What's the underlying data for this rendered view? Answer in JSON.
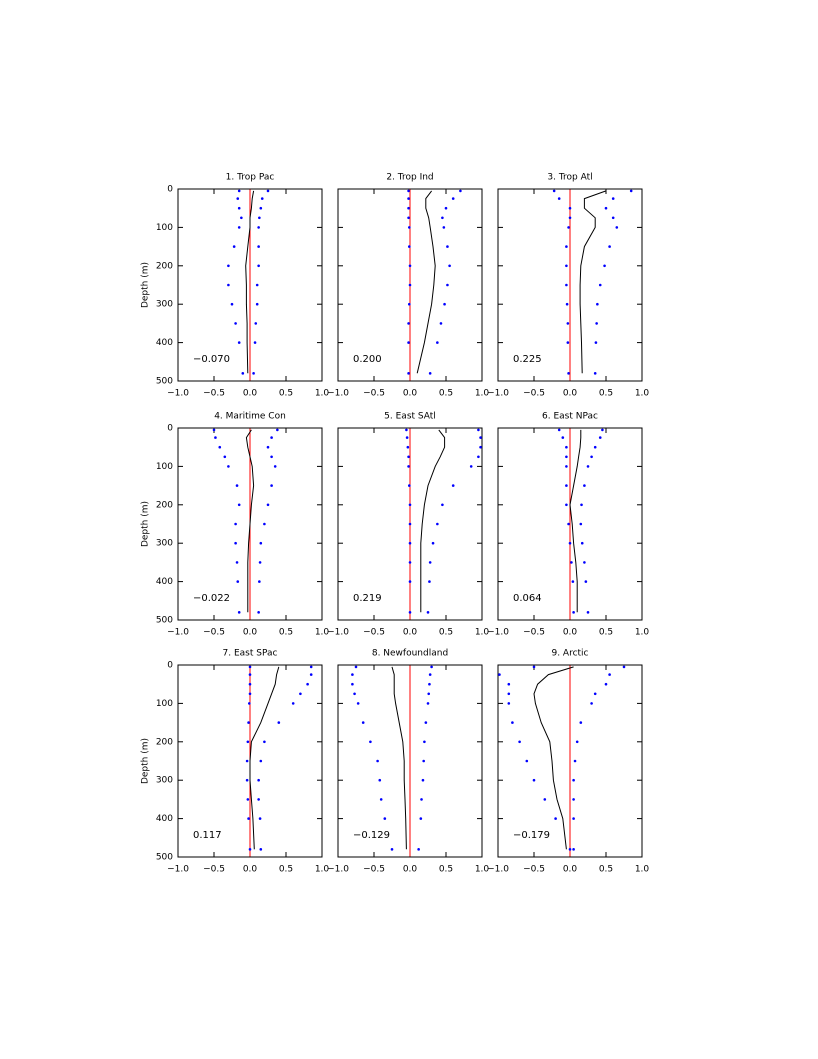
{
  "chart_data": [
    {
      "type": "line",
      "title": "1. Trop Pac",
      "ylabel": "Depth (m)",
      "annotation": "−0.070",
      "xlim": [
        -1,
        1
      ],
      "ylim": [
        500,
        0
      ],
      "xticks": [
        {
          "value": -1,
          "label": "−1.0"
        },
        {
          "value": -0.5,
          "label": "−0.5"
        },
        {
          "value": 0,
          "label": "0.0"
        },
        0.5,
        {
          "value": 1,
          "label": "1.0"
        }
      ],
      "yticks": [
        0,
        100,
        200,
        300,
        400,
        500
      ],
      "vline": 0,
      "vline_color": "#ff0000",
      "y": [
        5,
        25,
        50,
        75,
        100,
        150,
        200,
        250,
        300,
        350,
        400,
        480
      ],
      "series": [
        {
          "color": "#000000",
          "style": "solid",
          "values": [
            0.05,
            0.03,
            0.02,
            0.0,
            0.0,
            -0.03,
            -0.06,
            -0.05,
            -0.05,
            -0.04,
            -0.04,
            -0.03
          ]
        },
        {
          "color": "#0000ff",
          "style": "dotted",
          "values": [
            -0.15,
            -0.17,
            -0.15,
            -0.12,
            -0.15,
            -0.22,
            -0.3,
            -0.3,
            -0.25,
            -0.2,
            -0.15,
            -0.1
          ]
        },
        {
          "color": "#0000ff",
          "style": "dotted",
          "values": [
            0.25,
            0.17,
            0.15,
            0.13,
            0.12,
            0.12,
            0.12,
            0.1,
            0.1,
            0.08,
            0.07,
            0.05
          ]
        }
      ]
    },
    {
      "type": "line",
      "title": "2. Trop Ind",
      "annotation": "0.200",
      "xlim": [
        -1,
        1
      ],
      "ylim": [
        500,
        0
      ],
      "xticks": [
        {
          "value": -1,
          "label": "−1.0"
        },
        {
          "value": -0.5,
          "label": "−0.5"
        },
        {
          "value": 0,
          "label": "0.0"
        },
        0.5,
        {
          "value": 1,
          "label": "1.0"
        }
      ],
      "yticks": [
        0,
        100,
        200,
        300,
        400,
        500
      ],
      "vline": 0,
      "vline_color": "#ff0000",
      "y": [
        5,
        25,
        50,
        75,
        100,
        150,
        200,
        250,
        300,
        350,
        400,
        480
      ],
      "series": [
        {
          "color": "#000000",
          "style": "solid",
          "values": [
            0.3,
            0.22,
            0.22,
            0.26,
            0.28,
            0.32,
            0.35,
            0.33,
            0.3,
            0.25,
            0.2,
            0.1
          ]
        },
        {
          "color": "#0000ff",
          "style": "dotted",
          "values": [
            -0.02,
            -0.02,
            -0.02,
            -0.02,
            -0.01,
            -0.01,
            0,
            0,
            -0.01,
            -0.02,
            -0.02,
            -0.02
          ]
        },
        {
          "color": "#0000ff",
          "style": "dotted",
          "values": [
            0.7,
            0.6,
            0.5,
            0.45,
            0.47,
            0.52,
            0.55,
            0.52,
            0.48,
            0.43,
            0.38,
            0.28
          ]
        }
      ]
    },
    {
      "type": "line",
      "title": "3. Trop Atl",
      "annotation": "0.225",
      "xlim": [
        -1,
        1
      ],
      "ylim": [
        500,
        0
      ],
      "xticks": [
        {
          "value": -1,
          "label": "−1.0"
        },
        {
          "value": -0.5,
          "label": "−0.5"
        },
        {
          "value": 0,
          "label": "0.0"
        },
        0.5,
        {
          "value": 1,
          "label": "1.0"
        }
      ],
      "yticks": [
        0,
        100,
        200,
        300,
        400,
        500
      ],
      "vline": 0,
      "vline_color": "#ff0000",
      "y": [
        5,
        25,
        50,
        75,
        100,
        150,
        200,
        250,
        300,
        350,
        400,
        480
      ],
      "series": [
        {
          "color": "#000000",
          "style": "solid",
          "values": [
            0.5,
            0.2,
            0.2,
            0.35,
            0.35,
            0.2,
            0.15,
            0.14,
            0.14,
            0.15,
            0.16,
            0.17
          ]
        },
        {
          "color": "#0000ff",
          "style": "dotted",
          "values": [
            -0.22,
            -0.15,
            0,
            0,
            -0.02,
            -0.05,
            -0.05,
            -0.05,
            -0.04,
            -0.03,
            -0.03,
            -0.02
          ]
        },
        {
          "color": "#0000ff",
          "style": "dotted",
          "values": [
            0.85,
            0.6,
            0.5,
            0.6,
            0.65,
            0.55,
            0.48,
            0.42,
            0.38,
            0.37,
            0.36,
            0.35
          ]
        }
      ]
    },
    {
      "type": "line",
      "title": "4. Maritime Con",
      "ylabel": "Depth (m)",
      "annotation": "−0.022",
      "xlim": [
        -1,
        1
      ],
      "ylim": [
        500,
        0
      ],
      "xticks": [
        {
          "value": -1,
          "label": "−1.0"
        },
        {
          "value": -0.5,
          "label": "−0.5"
        },
        {
          "value": 0,
          "label": "0.0"
        },
        0.5,
        {
          "value": 1,
          "label": "1.0"
        }
      ],
      "yticks": [
        0,
        100,
        200,
        300,
        400,
        500
      ],
      "vline": 0,
      "vline_color": "#ff0000",
      "y": [
        5,
        25,
        50,
        75,
        100,
        150,
        200,
        250,
        300,
        350,
        400,
        480
      ],
      "series": [
        {
          "color": "#000000",
          "style": "solid",
          "values": [
            0.02,
            -0.05,
            -0.03,
            0,
            0.03,
            0.05,
            0.02,
            0,
            -0.02,
            -0.03,
            -0.03,
            -0.03
          ]
        },
        {
          "color": "#0000ff",
          "style": "dotted",
          "values": [
            -0.5,
            -0.48,
            -0.42,
            -0.35,
            -0.3,
            -0.18,
            -0.15,
            -0.2,
            -0.2,
            -0.18,
            -0.17,
            -0.15
          ]
        },
        {
          "color": "#0000ff",
          "style": "dotted",
          "values": [
            0.38,
            0.3,
            0.25,
            0.3,
            0.35,
            0.3,
            0.25,
            0.2,
            0.15,
            0.14,
            0.13,
            0.12
          ]
        }
      ]
    },
    {
      "type": "line",
      "title": "5. East SAtl",
      "annotation": "0.219",
      "xlim": [
        -1,
        1
      ],
      "ylim": [
        500,
        0
      ],
      "xticks": [
        {
          "value": -1,
          "label": "−1.0"
        },
        {
          "value": -0.5,
          "label": "−0.5"
        },
        {
          "value": 0,
          "label": "0.0"
        },
        0.5,
        {
          "value": 1,
          "label": "1.0"
        }
      ],
      "yticks": [
        0,
        100,
        200,
        300,
        400,
        500
      ],
      "vline": 0,
      "vline_color": "#ff0000",
      "y": [
        5,
        25,
        50,
        75,
        100,
        150,
        200,
        250,
        300,
        350,
        400,
        480
      ],
      "series": [
        {
          "color": "#000000",
          "style": "solid",
          "values": [
            0.4,
            0.48,
            0.48,
            0.42,
            0.35,
            0.25,
            0.2,
            0.17,
            0.15,
            0.15,
            0.15,
            0.15
          ]
        },
        {
          "color": "#0000ff",
          "style": "dotted",
          "values": [
            -0.05,
            -0.04,
            -0.03,
            -0.02,
            -0.02,
            -0.01,
            0,
            0,
            0,
            0,
            0,
            0
          ]
        },
        {
          "color": "#0000ff",
          "style": "dotted",
          "values": [
            0.95,
            0.98,
            0.98,
            0.95,
            0.85,
            0.6,
            0.45,
            0.38,
            0.32,
            0.28,
            0.27,
            0.25
          ]
        }
      ]
    },
    {
      "type": "line",
      "title": "6. East NPac",
      "annotation": "0.064",
      "xlim": [
        -1,
        1
      ],
      "ylim": [
        500,
        0
      ],
      "xticks": [
        {
          "value": -1,
          "label": "−1.0"
        },
        {
          "value": -0.5,
          "label": "−0.5"
        },
        {
          "value": 0,
          "label": "0.0"
        },
        0.5,
        {
          "value": 1,
          "label": "1.0"
        }
      ],
      "yticks": [
        0,
        100,
        200,
        300,
        400,
        500
      ],
      "vline": 0,
      "vline_color": "#ff0000",
      "y": [
        5,
        25,
        50,
        75,
        100,
        150,
        200,
        250,
        300,
        350,
        400,
        480
      ],
      "series": [
        {
          "color": "#000000",
          "style": "solid",
          "values": [
            0.15,
            0.15,
            0.14,
            0.12,
            0.1,
            0.05,
            0,
            0.03,
            0.05,
            0.08,
            0.1,
            0.1
          ]
        },
        {
          "color": "#0000ff",
          "style": "dotted",
          "values": [
            -0.15,
            -0.1,
            -0.05,
            -0.05,
            -0.05,
            -0.05,
            -0.05,
            -0.02,
            0,
            0.02,
            0.04,
            0.05
          ]
        },
        {
          "color": "#0000ff",
          "style": "dotted",
          "values": [
            0.45,
            0.42,
            0.35,
            0.3,
            0.25,
            0.2,
            0.16,
            0.15,
            0.17,
            0.2,
            0.22,
            0.25
          ]
        }
      ]
    },
    {
      "type": "line",
      "title": "7. East SPac",
      "ylabel": "Depth (m)",
      "annotation": "0.117",
      "xlim": [
        -1,
        1
      ],
      "ylim": [
        500,
        0
      ],
      "xticks": [
        {
          "value": -1,
          "label": "−1.0"
        },
        {
          "value": -0.5,
          "label": "−0.5"
        },
        {
          "value": 0,
          "label": "0.0"
        },
        0.5,
        {
          "value": 1,
          "label": "1.0"
        }
      ],
      "yticks": [
        0,
        100,
        200,
        300,
        400,
        500
      ],
      "vline": 0,
      "vline_color": "#ff0000",
      "y": [
        5,
        25,
        50,
        75,
        100,
        150,
        200,
        250,
        300,
        350,
        400,
        480
      ],
      "series": [
        {
          "color": "#000000",
          "style": "solid",
          "values": [
            0.4,
            0.37,
            0.35,
            0.3,
            0.25,
            0.15,
            0.02,
            0,
            0,
            0.02,
            0.04,
            0.06
          ]
        },
        {
          "color": "#0000ff",
          "style": "dotted",
          "values": [
            0,
            0,
            0,
            0,
            -0.01,
            -0.02,
            -0.03,
            -0.04,
            -0.04,
            -0.03,
            -0.02,
            0
          ]
        },
        {
          "color": "#0000ff",
          "style": "dotted",
          "values": [
            0.85,
            0.85,
            0.8,
            0.7,
            0.6,
            0.4,
            0.2,
            0.15,
            0.12,
            0.12,
            0.14,
            0.15
          ]
        }
      ]
    },
    {
      "type": "line",
      "title": "8. Newfoundland",
      "annotation": "−0.129",
      "xlim": [
        -1,
        1
      ],
      "ylim": [
        500,
        0
      ],
      "xticks": [
        {
          "value": -1,
          "label": "−1.0"
        },
        {
          "value": -0.5,
          "label": "−0.5"
        },
        {
          "value": 0,
          "label": "0.0"
        },
        0.5,
        {
          "value": 1,
          "label": "1.0"
        }
      ],
      "yticks": [
        0,
        100,
        200,
        300,
        400,
        500
      ],
      "vline": 0,
      "vline_color": "#ff0000",
      "y": [
        5,
        25,
        50,
        75,
        100,
        150,
        200,
        250,
        300,
        350,
        400,
        480
      ],
      "series": [
        {
          "color": "#000000",
          "style": "solid",
          "values": [
            -0.25,
            -0.22,
            -0.22,
            -0.22,
            -0.2,
            -0.15,
            -0.1,
            -0.08,
            -0.08,
            -0.07,
            -0.06,
            -0.05
          ]
        },
        {
          "color": "#0000ff",
          "style": "dotted",
          "values": [
            -0.75,
            -0.8,
            -0.8,
            -0.77,
            -0.72,
            -0.65,
            -0.55,
            -0.45,
            -0.42,
            -0.4,
            -0.35,
            -0.25
          ]
        },
        {
          "color": "#0000ff",
          "style": "dotted",
          "values": [
            0.3,
            0.28,
            0.27,
            0.26,
            0.25,
            0.22,
            0.2,
            0.19,
            0.18,
            0.16,
            0.15,
            0.12
          ]
        }
      ]
    },
    {
      "type": "line",
      "title": "9. Arctic",
      "annotation": "−0.179",
      "xlim": [
        -1,
        1
      ],
      "ylim": [
        500,
        0
      ],
      "xticks": [
        {
          "value": -1,
          "label": "−1.0"
        },
        {
          "value": -0.5,
          "label": "−0.5"
        },
        {
          "value": 0,
          "label": "0.0"
        },
        0.5,
        {
          "value": 1,
          "label": "1.0"
        }
      ],
      "yticks": [
        0,
        100,
        200,
        300,
        400,
        500
      ],
      "vline": 0,
      "vline_color": "#ff0000",
      "y": [
        5,
        25,
        50,
        75,
        100,
        150,
        200,
        250,
        300,
        350,
        400,
        480
      ],
      "series": [
        {
          "color": "#000000",
          "style": "solid",
          "values": [
            0.05,
            -0.3,
            -0.45,
            -0.5,
            -0.48,
            -0.4,
            -0.28,
            -0.25,
            -0.23,
            -0.18,
            -0.1,
            -0.05
          ]
        },
        {
          "color": "#0000ff",
          "style": "dotted",
          "values": [
            -0.5,
            -0.98,
            -0.85,
            -0.85,
            -0.85,
            -0.8,
            -0.7,
            -0.6,
            -0.5,
            -0.35,
            -0.2,
            0
          ]
        },
        {
          "color": "#0000ff",
          "style": "dotted",
          "values": [
            0.75,
            0.55,
            0.5,
            0.35,
            0.3,
            0.15,
            0.1,
            0.07,
            0.05,
            0.05,
            0.05,
            0.05
          ]
        }
      ]
    }
  ]
}
